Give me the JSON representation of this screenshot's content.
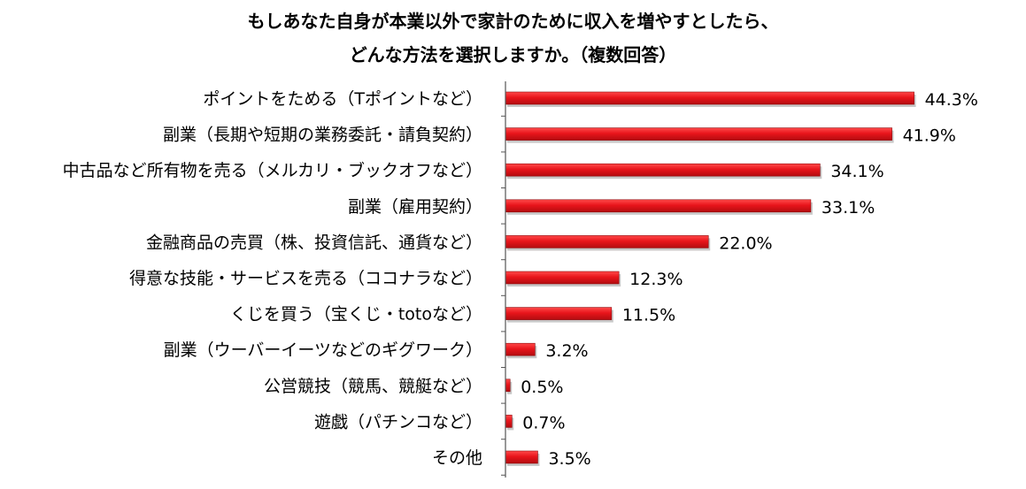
{
  "chart_data": {
    "type": "bar",
    "orientation": "horizontal",
    "title": [
      "もしあなた自身が本業以外で家計のために収入を増やすとしたら、",
      "どんな方法を選択しますか。（複数回答）"
    ],
    "categories": [
      "ポイントをためる（Tポイントなど）",
      "副業（長期や短期の業務委託・請負契約）",
      "中古品など所有物を売る（メルカリ・ブックオフなど）",
      "副業（雇用契約）",
      "金融商品の売買（株、投資信託、通貨など）",
      "得意な技能・サービスを売る（ココナラなど）",
      "くじを買う（宝くじ・totoなど）",
      "副業（ウーバーイーツなどのギグワーク）",
      "公営競技（競馬、競艇など）",
      "遊戯（パチンコなど）",
      "その他"
    ],
    "values": [
      44.3,
      41.9,
      34.1,
      33.1,
      22.0,
      12.3,
      11.5,
      3.2,
      0.5,
      0.7,
      3.5
    ],
    "value_labels": [
      "44.3%",
      "41.9%",
      "34.1%",
      "33.1%",
      "22.0%",
      "12.3%",
      "11.5%",
      "3.2%",
      "0.5%",
      "0.7%",
      "3.5%"
    ],
    "xlim": [
      0,
      50
    ],
    "unit": "%",
    "bar_color": "#e8151b",
    "axis_color": "#555555"
  }
}
